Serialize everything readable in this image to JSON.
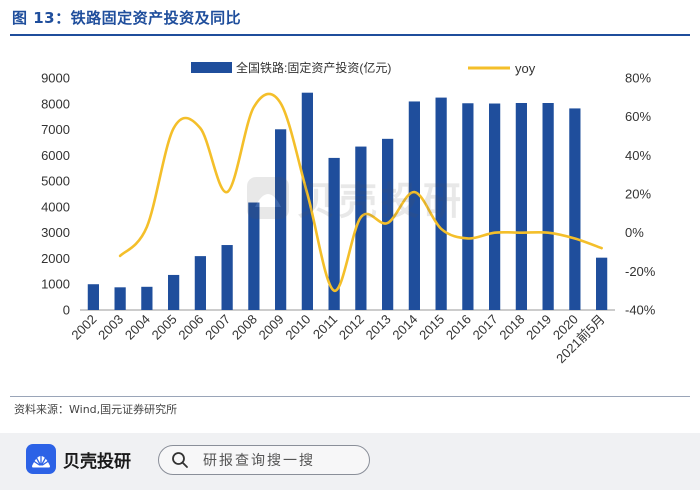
{
  "figure": {
    "title": "图 13：铁路固定资产投资及同比",
    "source": "资料来源：Wind,国元证券研究所"
  },
  "colors": {
    "bar": "#1f4e9c",
    "line": "#f4bf2a",
    "title": "#1f4e9c",
    "brand": "#2c62e6"
  },
  "chart_data": {
    "type": "bar",
    "title": "",
    "xlabel": "",
    "ylabel": "",
    "categories": [
      "2002",
      "2003",
      "2004",
      "2005",
      "2006",
      "2007",
      "2008",
      "2009",
      "2010",
      "2011",
      "2012",
      "2013",
      "2014",
      "2015",
      "2016",
      "2017",
      "2018",
      "2019",
      "2020",
      "2021前5月"
    ],
    "series": [
      {
        "name": "全国铁路:固定资产投资(亿元)",
        "type": "bar",
        "axis": "left",
        "values": [
          1000,
          880,
          900,
          1360,
          2090,
          2520,
          4170,
          7010,
          8430,
          5900,
          6340,
          6640,
          8090,
          8240,
          8020,
          8010,
          8030,
          8030,
          7820,
          2030
        ]
      },
      {
        "name": "yoy",
        "type": "line",
        "axis": "right",
        "values": [
          null,
          -12,
          3,
          54,
          54,
          21,
          65,
          67,
          20,
          -30,
          8,
          5,
          21,
          2,
          -3,
          0,
          0,
          0,
          -3,
          -8
        ]
      }
    ],
    "y_left": {
      "min": 0,
      "max": 9000,
      "ticks": [
        0,
        1000,
        2000,
        3000,
        4000,
        5000,
        6000,
        7000,
        8000,
        9000
      ]
    },
    "y_right": {
      "min": -40,
      "max": 80,
      "ticks": [
        "-40%",
        "-20%",
        "0%",
        "20%",
        "40%",
        "60%",
        "80%"
      ]
    },
    "legend_position": "top-center",
    "grid": false
  },
  "footer": {
    "brand_name": "贝壳投研",
    "search_placeholder": "研报查询搜一搜",
    "brand_icon": "shell-icon",
    "search_icon": "search-icon"
  },
  "watermark": {
    "text": "贝壳投研"
  }
}
